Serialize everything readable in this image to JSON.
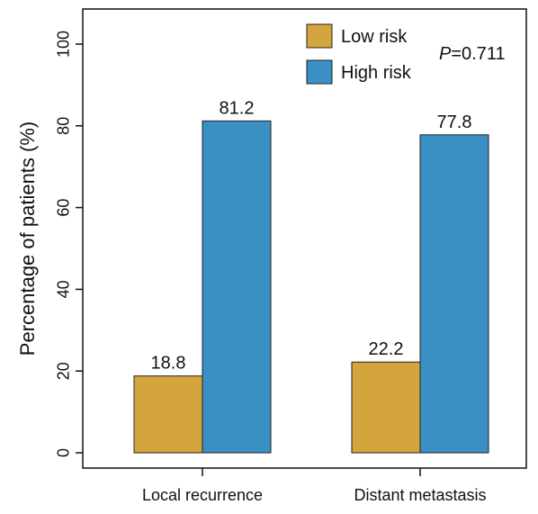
{
  "chart_data": {
    "type": "bar",
    "categories": [
      "Local recurrence",
      "Distant metastasis"
    ],
    "series": [
      {
        "name": "Low risk",
        "values": [
          18.8,
          22.2
        ],
        "color": "#d4a53c"
      },
      {
        "name": "High risk",
        "values": [
          81.2,
          77.8
        ],
        "color": "#3a8fc4"
      }
    ],
    "value_labels": [
      [
        "18.8",
        "22.2"
      ],
      [
        "81.2",
        "77.8"
      ]
    ],
    "title": "",
    "xlabel": "",
    "ylabel": "Percentage of patients (%)",
    "ylim": [
      0,
      100
    ],
    "yticks": [
      "0",
      "20",
      "40",
      "60",
      "80",
      "100"
    ],
    "legend_position": "top-right",
    "annotation": {
      "prefix": "P",
      "value": "=0.711"
    },
    "grid": false
  }
}
